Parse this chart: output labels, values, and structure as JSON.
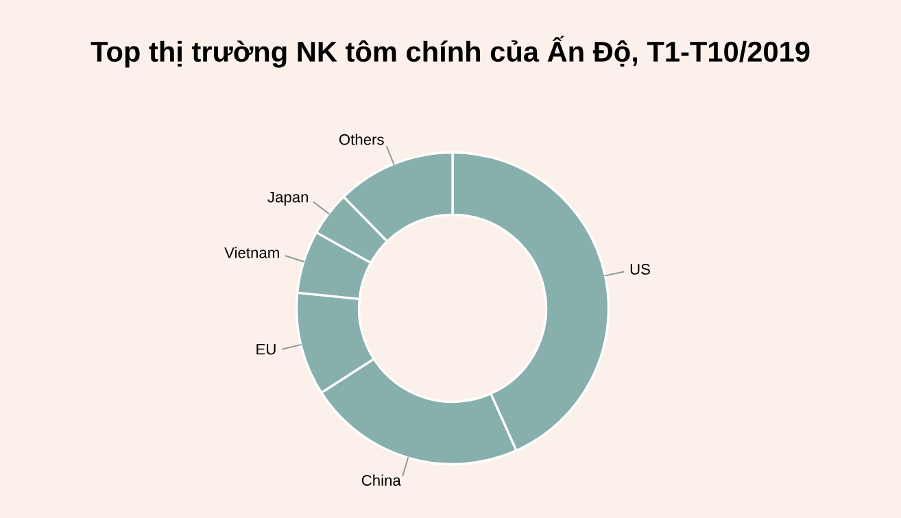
{
  "chart_data": {
    "type": "donut",
    "title": "Top thị trường NK tôm chính của Ấn Độ, T1-T10/2019",
    "categories": [
      "US",
      "China",
      "EU",
      "Vietnam",
      "Japan",
      "Others"
    ],
    "values": [
      43.3,
      22.6,
      10.7,
      6.5,
      4.6,
      12.3
    ],
    "colors": [
      "#87b0ad",
      "#87b0ad",
      "#87b0ad",
      "#87b0ad",
      "#87b0ad",
      "#87b0ad"
    ],
    "legend": false
  }
}
